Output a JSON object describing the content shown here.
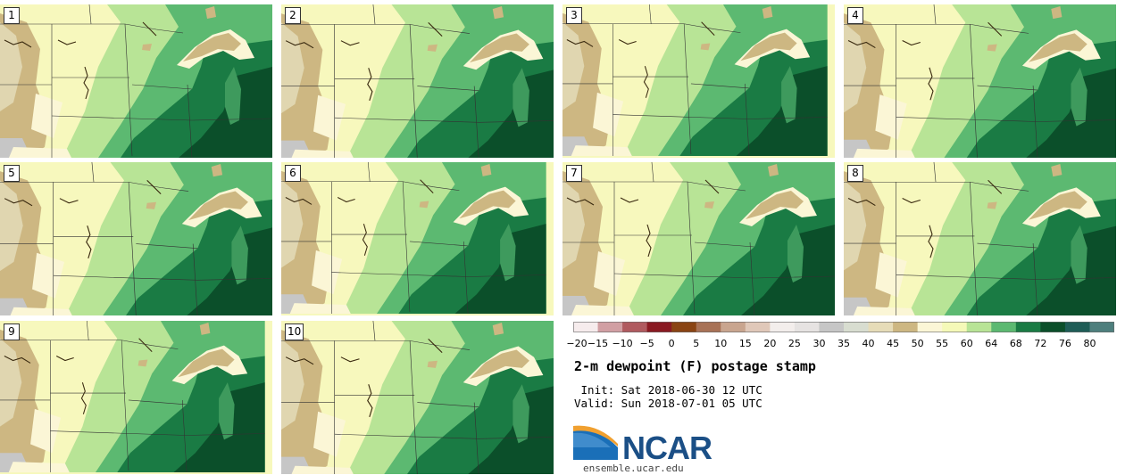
{
  "panels": [
    {
      "label": "1",
      "variant": 0
    },
    {
      "label": "2",
      "variant": 1
    },
    {
      "label": "3",
      "variant": 2
    },
    {
      "label": "4",
      "variant": 3
    },
    {
      "label": "5",
      "variant": 1
    },
    {
      "label": "6",
      "variant": 2
    },
    {
      "label": "7",
      "variant": 0
    },
    {
      "label": "8",
      "variant": 3
    },
    {
      "label": "9",
      "variant": 2
    },
    {
      "label": "10",
      "variant": 1
    }
  ],
  "colorbar": {
    "colors": [
      "#f6eced",
      "#d19fa3",
      "#b05a5f",
      "#8a1a22",
      "#8a4413",
      "#a87256",
      "#c9a58f",
      "#e0c8b9",
      "#f3eeec",
      "#e6e3e2",
      "#c6c6c6",
      "#d8ddd0",
      "#e6dcb8",
      "#cdb782",
      "#fbf6d6",
      "#f5f9b8",
      "#b8e496",
      "#5cb971",
      "#1a7b44",
      "#0b4f2a",
      "#1f5d57",
      "#4e7f7d"
    ],
    "ticks": [
      "−20",
      "−15",
      "−10",
      "−5",
      "0",
      "5",
      "10",
      "15",
      "20",
      "25",
      "30",
      "35",
      "40",
      "45",
      "50",
      "55",
      "60",
      "64",
      "68",
      "72",
      "76",
      "80"
    ]
  },
  "title": "2-m dewpoint (F) postage stamp",
  "init": " Init: Sat 2018-06-30 12 UTC",
  "valid": "Valid: Sun 2018-07-01 05 UTC",
  "logo": {
    "name": "ncar-logo",
    "text": "NCAR"
  },
  "site": "ensemble.ucar.edu"
}
